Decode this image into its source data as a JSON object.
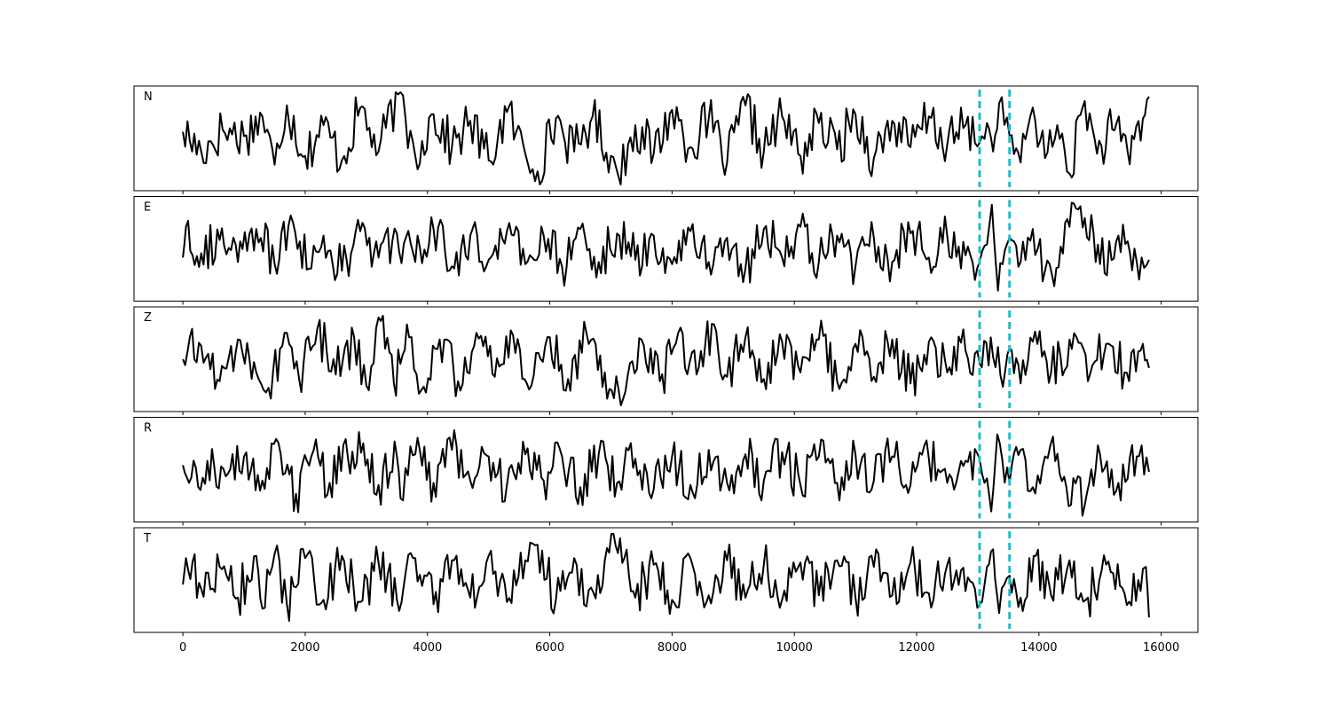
{
  "chart_data": {
    "type": "line",
    "layout": "stacked-panels",
    "xlim": [
      -800,
      16600
    ],
    "x_ticks": [
      0,
      2000,
      4000,
      6000,
      8000,
      10000,
      12000,
      14000,
      16000
    ],
    "x_tick_labels": [
      "0",
      "2000",
      "4000",
      "6000",
      "8000",
      "10000",
      "12000",
      "14000",
      "16000"
    ],
    "samples": 15801,
    "grid": false,
    "line_color": "#000000",
    "marker_color": "#17becf",
    "markers": {
      "style": "dashed vertical lines",
      "x": [
        13030,
        13520
      ]
    },
    "panels": [
      {
        "label": "N",
        "ylim": [
          -1.15,
          1.15
        ],
        "x": [
          0,
          300,
          650,
          1000,
          1300,
          1500,
          1700,
          2000,
          2300,
          2600,
          2900,
          3200,
          3520,
          3800,
          4100,
          4400,
          4700,
          5000,
          5300,
          5600,
          5800,
          6100,
          6400,
          6700,
          7000,
          7120,
          7400,
          7700,
          8000,
          8300,
          8600,
          8900,
          9200,
          9500,
          9800,
          10100,
          10400,
          10700,
          11000,
          11300,
          11600,
          11900,
          12200,
          12500,
          12800,
          13030,
          13150,
          13250,
          13350,
          13520,
          13700,
          13900,
          14100,
          14300,
          14500,
          14750,
          14950,
          15200,
          15450,
          15700,
          15800
        ],
        "y": [
          0.15,
          -0.3,
          0.2,
          0.05,
          0.5,
          -0.6,
          0.75,
          -0.4,
          0.3,
          -0.5,
          0.7,
          -0.3,
          1.0,
          -0.4,
          0.55,
          -0.2,
          0.4,
          -0.5,
          0.6,
          -0.35,
          -0.75,
          0.45,
          -0.3,
          0.5,
          -0.4,
          -0.85,
          0.3,
          -0.35,
          0.65,
          -0.2,
          0.45,
          -0.55,
          0.75,
          -0.3,
          0.5,
          -0.4,
          0.35,
          -0.25,
          0.55,
          -0.45,
          0.4,
          -0.2,
          0.5,
          -0.15,
          0.3,
          -0.1,
          0.35,
          -0.3,
          0.8,
          0.05,
          -0.55,
          0.7,
          -0.45,
          0.3,
          -0.8,
          0.85,
          -0.35,
          0.2,
          -0.3,
          0.45,
          0.95
        ]
      },
      {
        "label": "E",
        "ylim": [
          -1.15,
          1.15
        ],
        "x": [
          0,
          50,
          300,
          600,
          900,
          1200,
          1500,
          1800,
          2100,
          2300,
          2600,
          2900,
          3200,
          3500,
          3800,
          4100,
          4400,
          4700,
          5000,
          5300,
          5600,
          5900,
          6200,
          6500,
          6800,
          7100,
          7400,
          7700,
          8000,
          8300,
          8600,
          8900,
          9200,
          9500,
          9800,
          10100,
          10400,
          10700,
          11000,
          11300,
          11600,
          11900,
          12200,
          12500,
          12800,
          13030,
          13150,
          13230,
          13330,
          13520,
          13700,
          13900,
          14100,
          14250,
          14500,
          14750,
          15000,
          15300,
          15600,
          15800
        ],
        "y": [
          -0.2,
          0.5,
          -0.1,
          0.2,
          -0.3,
          0.45,
          -0.35,
          0.6,
          -0.45,
          0.3,
          -0.5,
          0.4,
          -0.2,
          0.35,
          -0.3,
          0.45,
          -0.4,
          0.3,
          -0.25,
          0.4,
          -0.35,
          0.3,
          -0.4,
          0.45,
          -0.3,
          0.35,
          -0.25,
          0.3,
          -0.35,
          0.4,
          -0.3,
          0.25,
          -0.45,
          0.45,
          -0.2,
          0.5,
          -0.3,
          0.3,
          -0.4,
          0.25,
          -0.3,
          0.35,
          -0.2,
          0.3,
          -0.15,
          -0.3,
          0.1,
          1.0,
          -0.95,
          0.25,
          -0.3,
          0.45,
          -0.5,
          -0.85,
          0.5,
          0.7,
          -0.35,
          0.3,
          -0.3,
          -0.25
        ]
      },
      {
        "label": "Z",
        "ylim": [
          -1.15,
          1.15
        ],
        "x": [
          0,
          300,
          600,
          900,
          1200,
          1400,
          1700,
          1900,
          2200,
          2500,
          2800,
          3000,
          3200,
          3450,
          3700,
          3900,
          4200,
          4500,
          4800,
          5100,
          5400,
          5700,
          6000,
          6300,
          6600,
          6900,
          7200,
          7500,
          7800,
          8100,
          8400,
          8650,
          8900,
          9200,
          9500,
          9800,
          10100,
          10400,
          10700,
          11000,
          11300,
          11600,
          11900,
          12200,
          12500,
          12800,
          13030,
          13250,
          13450,
          13520,
          13700,
          13900,
          14200,
          14500,
          14800,
          15100,
          15400,
          15700,
          15800
        ],
        "y": [
          0.0,
          0.3,
          -0.5,
          0.45,
          -0.3,
          -0.65,
          0.6,
          -0.45,
          0.7,
          -0.35,
          0.5,
          -0.6,
          0.95,
          -0.55,
          0.5,
          -0.7,
          0.45,
          -0.5,
          0.6,
          -0.4,
          0.55,
          -0.6,
          0.5,
          -0.45,
          0.6,
          -0.3,
          -0.9,
          0.45,
          -0.5,
          0.6,
          -0.35,
          0.8,
          -0.4,
          0.5,
          -0.45,
          0.4,
          -0.3,
          0.45,
          -0.5,
          0.35,
          -0.4,
          0.45,
          -0.55,
          0.4,
          -0.3,
          0.2,
          -0.1,
          0.05,
          -0.25,
          0.25,
          -0.55,
          0.4,
          -0.3,
          0.45,
          -0.5,
          0.35,
          -0.3,
          0.35,
          -0.2
        ]
      },
      {
        "label": "R",
        "ylim": [
          -1.15,
          1.15
        ],
        "x": [
          0,
          100,
          400,
          700,
          1000,
          1300,
          1600,
          1850,
          2100,
          2400,
          2700,
          2950,
          3200,
          3500,
          3560,
          3800,
          4100,
          4400,
          4700,
          5000,
          5300,
          5600,
          5900,
          6200,
          6500,
          6800,
          7100,
          7400,
          7700,
          8000,
          8300,
          8600,
          8900,
          9200,
          9500,
          9800,
          10100,
          10400,
          10700,
          11000,
          11300,
          11600,
          11900,
          12200,
          12500,
          12800,
          13030,
          13150,
          13220,
          13320,
          13520,
          13700,
          13900,
          14100,
          14230,
          14450,
          14750,
          15000,
          15300,
          15600,
          15800
        ],
        "y": [
          0.1,
          -0.3,
          0.2,
          -0.15,
          0.3,
          -0.25,
          0.35,
          -0.55,
          0.3,
          -0.3,
          0.25,
          0.6,
          -0.35,
          0.3,
          -0.65,
          0.35,
          -0.3,
          0.45,
          -0.25,
          0.3,
          -0.35,
          0.35,
          -0.25,
          0.3,
          -0.4,
          0.35,
          -0.3,
          0.25,
          -0.45,
          0.3,
          -0.35,
          0.45,
          -0.3,
          0.35,
          -0.25,
          0.4,
          -0.35,
          0.3,
          -0.3,
          0.35,
          -0.25,
          0.3,
          -0.35,
          0.25,
          -0.3,
          0.2,
          0.25,
          -0.2,
          -0.95,
          0.8,
          -0.3,
          0.45,
          -0.4,
          0.3,
          0.75,
          -0.4,
          -0.8,
          0.35,
          -0.3,
          0.3,
          -0.05
        ]
      },
      {
        "label": "T",
        "ylim": [
          -1.15,
          1.15
        ],
        "x": [
          0,
          50,
          300,
          600,
          900,
          1200,
          1300,
          1500,
          1700,
          2000,
          2300,
          2600,
          2900,
          3200,
          3500,
          3800,
          4100,
          4400,
          4700,
          5000,
          5300,
          5600,
          5800,
          6100,
          6400,
          6600,
          6900,
          7150,
          7400,
          7700,
          8000,
          8300,
          8600,
          8900,
          9200,
          9500,
          9800,
          10100,
          10400,
          10700,
          11000,
          11300,
          11600,
          11900,
          12200,
          12500,
          12800,
          13030,
          13150,
          13250,
          13350,
          13520,
          13700,
          13950,
          14200,
          14500,
          14800,
          15100,
          15400,
          15700,
          15750,
          15800
        ],
        "y": [
          -0.1,
          0.5,
          -0.2,
          0.3,
          -0.4,
          0.55,
          -0.65,
          0.6,
          -0.55,
          0.5,
          -0.45,
          0.55,
          -0.5,
          0.4,
          -0.45,
          0.5,
          -0.55,
          0.45,
          -0.4,
          0.55,
          -0.5,
          0.45,
          0.8,
          -0.45,
          0.5,
          -0.6,
          0.45,
          0.95,
          -0.4,
          0.35,
          -0.45,
          0.5,
          -0.35,
          0.45,
          -0.4,
          0.35,
          -0.45,
          0.4,
          -0.35,
          0.45,
          -0.4,
          0.3,
          -0.35,
          0.4,
          -0.3,
          0.35,
          -0.25,
          -0.55,
          0.3,
          0.7,
          -0.75,
          0.1,
          -0.4,
          0.55,
          -0.35,
          0.45,
          -0.4,
          0.35,
          -0.3,
          0.25,
          0.3,
          -0.85
        ]
      }
    ]
  }
}
